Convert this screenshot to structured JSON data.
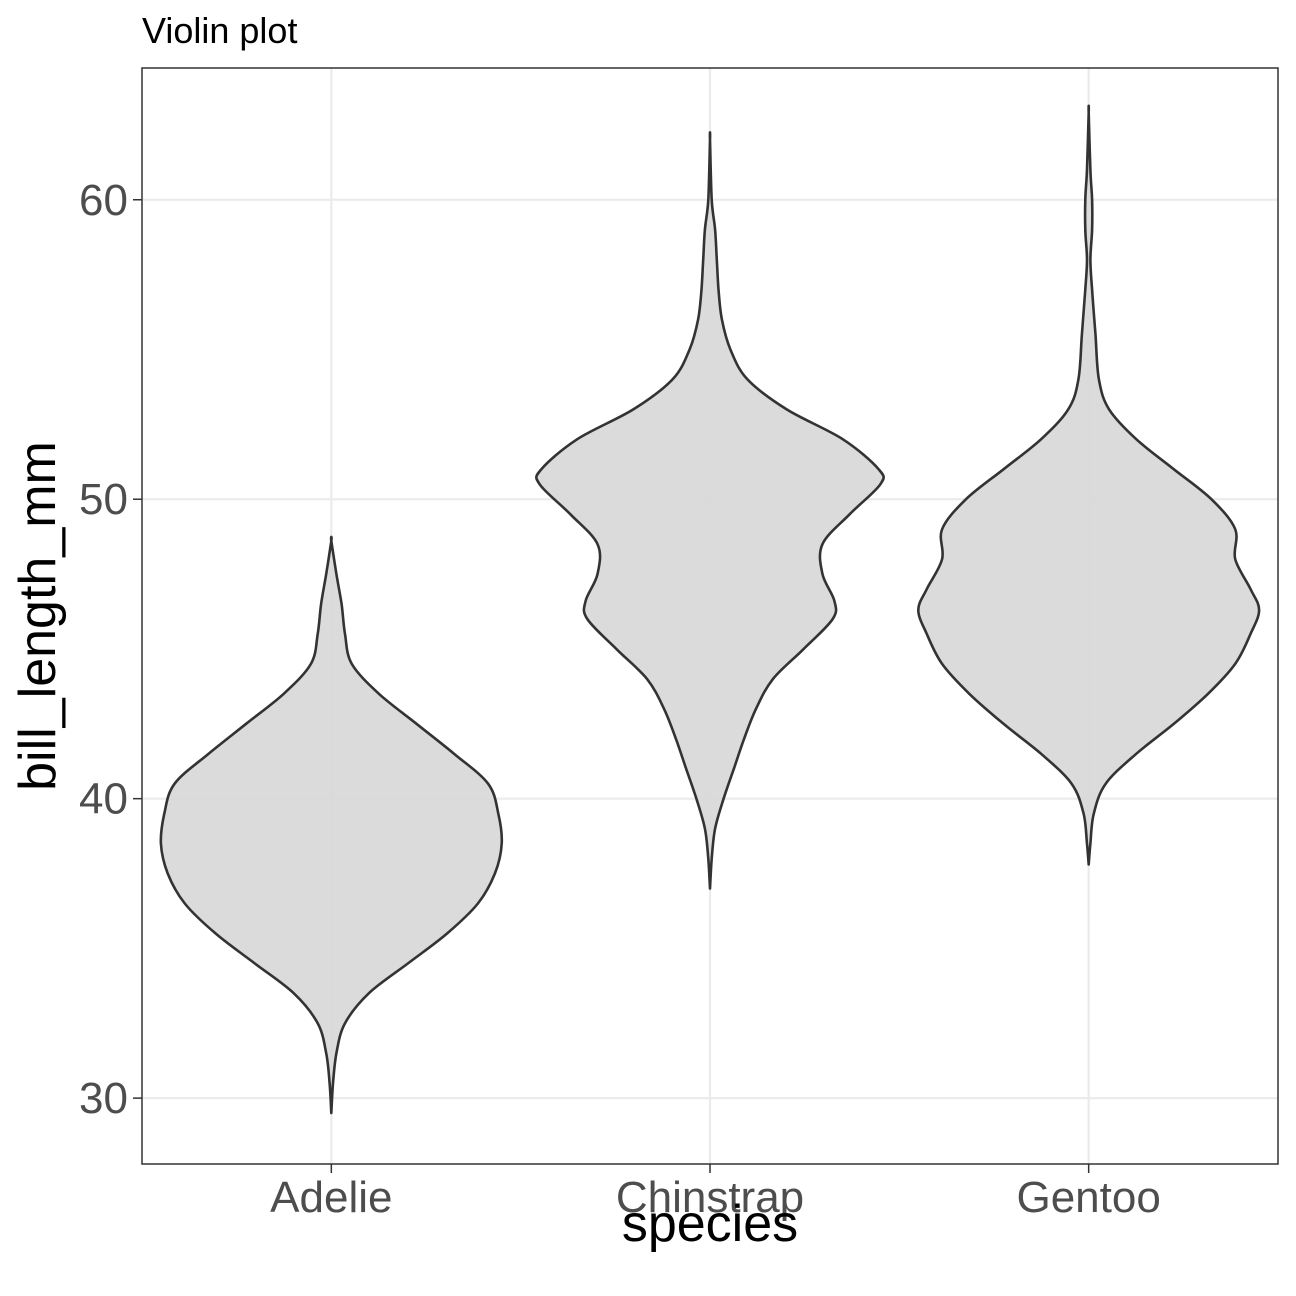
{
  "chart_data": {
    "type": "violin",
    "title": "Violin plot",
    "xlabel": "species",
    "ylabel": "bill_length_mm",
    "categories": [
      "Adelie",
      "Chinstrap",
      "Gentoo"
    ],
    "ylim": [
      27.8,
      64.4
    ],
    "yticks": [
      30,
      40,
      50,
      60
    ],
    "grid": true,
    "colors": {
      "fill": "#d9d9d9",
      "outline": "#333333",
      "grid": "#ebebeb",
      "panel_border": "#333333",
      "tick_label": "#4d4d4d"
    },
    "series": [
      {
        "category": "Adelie",
        "range": [
          29.5,
          48.6
        ],
        "density_profile": [
          [
            29.5,
            0.0
          ],
          [
            30.5,
            0.01
          ],
          [
            31.5,
            0.03
          ],
          [
            32.5,
            0.08
          ],
          [
            33.5,
            0.22
          ],
          [
            34.5,
            0.45
          ],
          [
            35.5,
            0.68
          ],
          [
            36.5,
            0.86
          ],
          [
            37.5,
            0.96
          ],
          [
            38.5,
            1.0
          ],
          [
            39.5,
            0.98
          ],
          [
            40.5,
            0.92
          ],
          [
            41.5,
            0.72
          ],
          [
            42.5,
            0.5
          ],
          [
            43.5,
            0.28
          ],
          [
            44.5,
            0.12
          ],
          [
            45.5,
            0.08
          ],
          [
            46.5,
            0.06
          ],
          [
            47.5,
            0.03
          ],
          [
            48.6,
            0.0
          ]
        ]
      },
      {
        "category": "Chinstrap",
        "range": [
          37.0,
          62.0
        ],
        "density_profile": [
          [
            37.0,
            0.0
          ],
          [
            38.0,
            0.01
          ],
          [
            39.0,
            0.03
          ],
          [
            40.0,
            0.08
          ],
          [
            41.0,
            0.14
          ],
          [
            42.0,
            0.2
          ],
          [
            43.0,
            0.27
          ],
          [
            44.0,
            0.37
          ],
          [
            45.0,
            0.55
          ],
          [
            46.0,
            0.72
          ],
          [
            46.6,
            0.73
          ],
          [
            47.5,
            0.66
          ],
          [
            48.5,
            0.66
          ],
          [
            49.5,
            0.82
          ],
          [
            50.5,
            1.0
          ],
          [
            51.0,
            0.99
          ],
          [
            52.0,
            0.78
          ],
          [
            53.0,
            0.45
          ],
          [
            54.0,
            0.22
          ],
          [
            55.0,
            0.12
          ],
          [
            56.0,
            0.07
          ],
          [
            57.0,
            0.05
          ],
          [
            58.0,
            0.04
          ],
          [
            59.0,
            0.03
          ],
          [
            60.0,
            0.01
          ],
          [
            62.0,
            0.0
          ]
        ]
      },
      {
        "category": "Gentoo",
        "range": [
          37.8,
          62.9
        ],
        "density_profile": [
          [
            37.8,
            0.0
          ],
          [
            38.5,
            0.01
          ],
          [
            39.5,
            0.03
          ],
          [
            40.5,
            0.1
          ],
          [
            41.5,
            0.28
          ],
          [
            42.5,
            0.5
          ],
          [
            43.5,
            0.7
          ],
          [
            44.5,
            0.86
          ],
          [
            45.5,
            0.95
          ],
          [
            46.3,
            1.0
          ],
          [
            47.0,
            0.95
          ],
          [
            48.0,
            0.86
          ],
          [
            49.0,
            0.86
          ],
          [
            50.0,
            0.72
          ],
          [
            51.0,
            0.5
          ],
          [
            52.0,
            0.28
          ],
          [
            53.0,
            0.12
          ],
          [
            54.0,
            0.06
          ],
          [
            55.5,
            0.04
          ],
          [
            57.0,
            0.02
          ],
          [
            58.0,
            0.01
          ],
          [
            59.0,
            0.02
          ],
          [
            60.0,
            0.02
          ],
          [
            61.0,
            0.01
          ],
          [
            62.9,
            0.0
          ]
        ]
      }
    ]
  }
}
